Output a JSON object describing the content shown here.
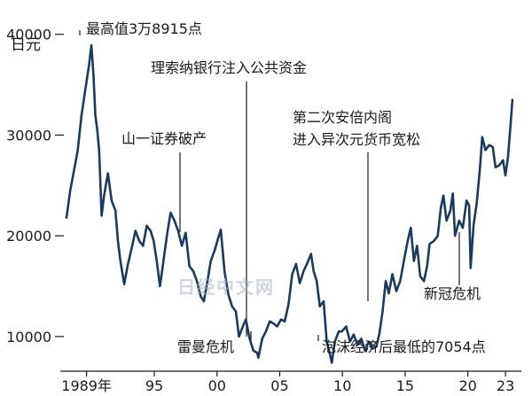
{
  "chart_data": {
    "type": "line",
    "ylabel_unit": "日元",
    "ylim": [
      7000,
      42000
    ],
    "xlim": [
      1988.0,
      2023.7
    ],
    "y_ticks": [
      {
        "value": 10000,
        "label": "10000"
      },
      {
        "value": 20000,
        "label": "20000"
      },
      {
        "value": 30000,
        "label": "30000"
      },
      {
        "value": 40000,
        "label": "40000"
      }
    ],
    "x_ticks": [
      {
        "value": 1989.6,
        "label": "1989年"
      },
      {
        "value": 1995,
        "label": "95"
      },
      {
        "value": 2000,
        "label": "00"
      },
      {
        "value": 2005,
        "label": "05"
      },
      {
        "value": 2010,
        "label": "10"
      },
      {
        "value": 2015,
        "label": "15"
      },
      {
        "value": 2020,
        "label": "20"
      },
      {
        "value": 2023,
        "label": "23"
      }
    ],
    "series": [
      {
        "color": "#1b3a5c",
        "points": [
          [
            1988.0,
            21800
          ],
          [
            1988.3,
            24500
          ],
          [
            1988.6,
            26500
          ],
          [
            1988.9,
            28500
          ],
          [
            1989.2,
            32000
          ],
          [
            1989.5,
            34500
          ],
          [
            1989.8,
            37000
          ],
          [
            1989.99,
            38915
          ],
          [
            1990.15,
            36000
          ],
          [
            1990.3,
            32000
          ],
          [
            1990.45,
            30500
          ],
          [
            1990.6,
            28500
          ],
          [
            1990.8,
            22000
          ],
          [
            1991.0,
            24000
          ],
          [
            1991.3,
            26200
          ],
          [
            1991.6,
            23500
          ],
          [
            1991.9,
            22500
          ],
          [
            1992.1,
            19500
          ],
          [
            1992.3,
            17500
          ],
          [
            1992.6,
            15200
          ],
          [
            1992.9,
            17200
          ],
          [
            1993.2,
            18800
          ],
          [
            1993.5,
            20500
          ],
          [
            1993.8,
            19500
          ],
          [
            1994.1,
            19000
          ],
          [
            1994.4,
            21000
          ],
          [
            1994.7,
            20500
          ],
          [
            1994.95,
            19500
          ],
          [
            1995.2,
            17500
          ],
          [
            1995.45,
            15000
          ],
          [
            1995.7,
            17200
          ],
          [
            1996.0,
            20000
          ],
          [
            1996.3,
            22300
          ],
          [
            1996.6,
            21500
          ],
          [
            1996.9,
            20500
          ],
          [
            1997.2,
            19000
          ],
          [
            1997.5,
            20300
          ],
          [
            1997.8,
            17000
          ],
          [
            1998.1,
            16500
          ],
          [
            1998.4,
            15500
          ],
          [
            1998.7,
            14000
          ],
          [
            1998.95,
            13500
          ],
          [
            1999.2,
            15200
          ],
          [
            1999.5,
            17500
          ],
          [
            1999.8,
            18500
          ],
          [
            2000.1,
            19800
          ],
          [
            2000.3,
            20600
          ],
          [
            2000.6,
            16500
          ],
          [
            2000.9,
            14200
          ],
          [
            2001.2,
            13000
          ],
          [
            2001.5,
            12500
          ],
          [
            2001.75,
            10000
          ],
          [
            2002.0,
            10800
          ],
          [
            2002.3,
            11700
          ],
          [
            2002.6,
            9800
          ],
          [
            2002.9,
            8600
          ],
          [
            2003.2,
            8400
          ],
          [
            2003.3,
            7900
          ],
          [
            2003.6,
            9800
          ],
          [
            2003.9,
            10500
          ],
          [
            2004.2,
            11500
          ],
          [
            2004.5,
            11300
          ],
          [
            2004.8,
            11000
          ],
          [
            2005.1,
            11700
          ],
          [
            2005.4,
            11500
          ],
          [
            2005.7,
            13200
          ],
          [
            2006.0,
            16200
          ],
          [
            2006.3,
            17200
          ],
          [
            2006.6,
            15300
          ],
          [
            2006.9,
            16500
          ],
          [
            2007.2,
            17300
          ],
          [
            2007.5,
            18200
          ],
          [
            2007.7,
            16500
          ],
          [
            2007.95,
            15500
          ],
          [
            2008.2,
            13000
          ],
          [
            2008.5,
            13500
          ],
          [
            2008.75,
            9500
          ],
          [
            2008.95,
            8500
          ],
          [
            2009.15,
            7400
          ],
          [
            2009.4,
            9500
          ],
          [
            2009.7,
            10500
          ],
          [
            2009.95,
            10500
          ],
          [
            2010.3,
            11000
          ],
          [
            2010.6,
            9500
          ],
          [
            2010.9,
            10200
          ],
          [
            2011.2,
            9200
          ],
          [
            2011.5,
            9800
          ],
          [
            2011.8,
            8600
          ],
          [
            2012.1,
            9500
          ],
          [
            2012.4,
            8800
          ],
          [
            2012.7,
            9000
          ],
          [
            2012.95,
            10300
          ],
          [
            2013.2,
            12500
          ],
          [
            2013.45,
            15500
          ],
          [
            2013.7,
            14300
          ],
          [
            2013.99,
            16200
          ],
          [
            2014.3,
            14500
          ],
          [
            2014.6,
            15500
          ],
          [
            2014.9,
            17500
          ],
          [
            2015.2,
            19500
          ],
          [
            2015.45,
            20800
          ],
          [
            2015.7,
            17500
          ],
          [
            2015.95,
            19000
          ],
          [
            2016.2,
            16000
          ],
          [
            2016.5,
            15500
          ],
          [
            2016.75,
            17000
          ],
          [
            2016.95,
            19200
          ],
          [
            2017.3,
            19500
          ],
          [
            2017.6,
            20000
          ],
          [
            2017.85,
            22800
          ],
          [
            2018.05,
            24000
          ],
          [
            2018.3,
            21500
          ],
          [
            2018.6,
            22500
          ],
          [
            2018.8,
            24200
          ],
          [
            2018.98,
            20000
          ],
          [
            2019.3,
            21500
          ],
          [
            2019.6,
            20800
          ],
          [
            2019.9,
            23500
          ],
          [
            2020.1,
            23000
          ],
          [
            2020.22,
            16800
          ],
          [
            2020.45,
            21000
          ],
          [
            2020.7,
            23200
          ],
          [
            2020.95,
            26500
          ],
          [
            2021.15,
            29800
          ],
          [
            2021.4,
            28500
          ],
          [
            2021.7,
            29000
          ],
          [
            2021.99,
            28800
          ],
          [
            2022.2,
            26800
          ],
          [
            2022.5,
            27000
          ],
          [
            2022.8,
            27500
          ],
          [
            2022.99,
            26000
          ],
          [
            2023.2,
            27800
          ],
          [
            2023.4,
            31000
          ],
          [
            2023.55,
            33500
          ]
        ]
      }
    ],
    "annotations": [
      {
        "text": "最高值3万8915点"
      },
      {
        "text": "理索纳银行注入公共资金"
      },
      {
        "text": "山一证券破产"
      },
      {
        "text": "第二次安倍内阁"
      },
      {
        "text": "进入异次元货币宽松"
      },
      {
        "text": "雷曼危机"
      },
      {
        "text": "泡沫经济后最低的7054点"
      },
      {
        "text": "新冠危机"
      }
    ]
  },
  "watermark": "日经中文网"
}
